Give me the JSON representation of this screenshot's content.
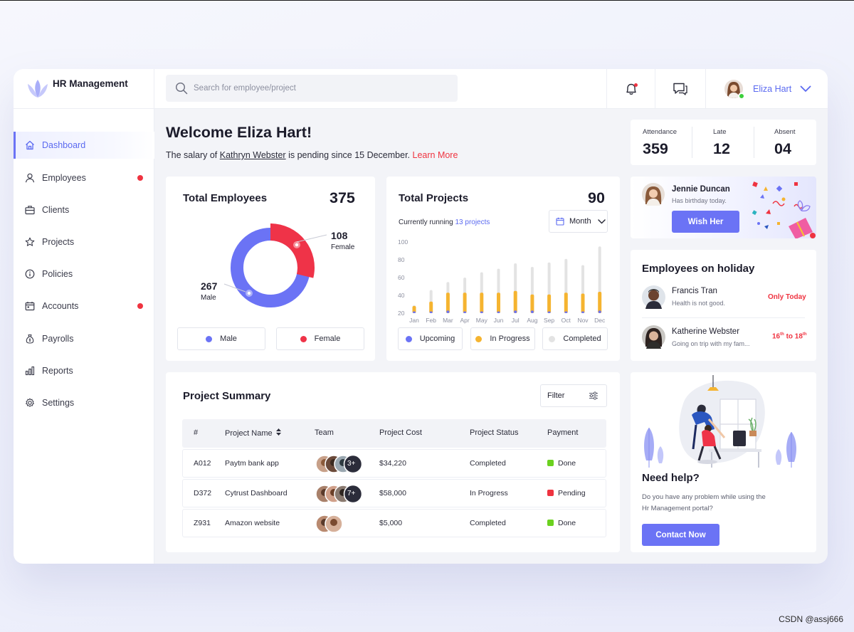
{
  "app": {
    "name": "HR Management"
  },
  "search": {
    "placeholder": "Search for employee/project"
  },
  "user": {
    "name": "Eliza Hart"
  },
  "sidebar": {
    "items": [
      {
        "label": "Dashboard",
        "icon": "home-icon",
        "active": true,
        "alert": false
      },
      {
        "label": "Employees",
        "icon": "user-icon",
        "active": false,
        "alert": true
      },
      {
        "label": "Clients",
        "icon": "briefcase-icon",
        "active": false,
        "alert": false
      },
      {
        "label": "Projects",
        "icon": "star-icon",
        "active": false,
        "alert": false
      },
      {
        "label": "Policies",
        "icon": "info-icon",
        "active": false,
        "alert": false
      },
      {
        "label": "Accounts",
        "icon": "calendar-icon",
        "active": false,
        "alert": true
      },
      {
        "label": "Payrolls",
        "icon": "money-bag-icon",
        "active": false,
        "alert": false
      },
      {
        "label": "Reports",
        "icon": "bar-chart-icon",
        "active": false,
        "alert": false
      },
      {
        "label": "Settings",
        "icon": "gear-icon",
        "active": false,
        "alert": false
      }
    ]
  },
  "welcome": {
    "title": "Welcome Eliza Hart!",
    "salary_prefix": "The salary of ",
    "salary_name": "Kathryn Webster",
    "salary_suffix": " is pending since 15 December. ",
    "learn_more": "Learn More"
  },
  "stats": [
    {
      "label": "Attendance",
      "value": "359"
    },
    {
      "label": "Late",
      "value": "12"
    },
    {
      "label": "Absent",
      "value": "04"
    }
  ],
  "total_employees": {
    "title": "Total Employees",
    "total": "375",
    "male_value": "267",
    "male_label": "Male",
    "female_value": "108",
    "female_label": "Female",
    "legend_male": "Male",
    "legend_female": "Female"
  },
  "total_projects": {
    "title": "Total Projects",
    "total": "90",
    "running_prefix": "Currently running ",
    "running_link": "13 projects",
    "period": "Month",
    "legend": [
      "Upcoming",
      "In Progress",
      "Completed"
    ]
  },
  "colors": {
    "accent": "#6b73f5",
    "female": "#ef3348",
    "male": "#6b73f5",
    "in_progress": "#f5b430",
    "upcoming": "#6b73f5",
    "completed": "#e3e3e3",
    "done": "#6bd11f",
    "pending": "#ef3340",
    "alert": "#ef3340"
  },
  "chart_data": [
    {
      "type": "pie",
      "categories": [
        "Male",
        "Female"
      ],
      "values": [
        267,
        108
      ]
    },
    {
      "type": "bar",
      "categories": [
        "Jan",
        "Feb",
        "Mar",
        "Apr",
        "May",
        "Jun",
        "Jul",
        "Aug",
        "Sep",
        "Oct",
        "Nov",
        "Dec"
      ],
      "ylim": [
        20,
        100
      ],
      "yticks": [
        100,
        80,
        60,
        40,
        20
      ],
      "series": [
        {
          "name": "Upcoming",
          "values": [
            22,
            22,
            23,
            22,
            22,
            22,
            23,
            23,
            22,
            22,
            22,
            23
          ]
        },
        {
          "name": "In Progress",
          "values": [
            28,
            33,
            43,
            43,
            43,
            43,
            45,
            41,
            41,
            43,
            42,
            44
          ]
        },
        {
          "name": "Completed",
          "values": [
            29,
            46,
            55,
            60,
            66,
            70,
            76,
            72,
            77,
            81,
            74,
            95
          ]
        }
      ]
    }
  ],
  "birthday": {
    "name": "Jennie Duncan",
    "subtitle": "Has birthday today.",
    "button": "Wish Her"
  },
  "holiday": {
    "title": "Employees on holiday",
    "people": [
      {
        "name": "Francis Tran",
        "note": "Health is not good.",
        "when": "Only Today"
      },
      {
        "name": "Katherine Webster",
        "note": "Going on trip with my fam...",
        "when_from": "16",
        "when_sup1": "th",
        "when_to": " to 18",
        "when_sup2": "th"
      }
    ]
  },
  "project_summary": {
    "title": "Project Summary",
    "filter": "Filter",
    "columns": [
      "#",
      "Project Name",
      "Team",
      "Project Cost",
      "Project Status",
      "Payment"
    ],
    "rows": [
      {
        "id": "A012",
        "name": "Paytm bank app",
        "team_more": "3+",
        "cost": "$34,220",
        "status": "Completed",
        "payment": "Done"
      },
      {
        "id": "D372",
        "name": "Cytrust Dashboard",
        "team_more": "7+",
        "cost": "$58,000",
        "status": "In Progress",
        "payment": "Pending"
      },
      {
        "id": "Z931",
        "name": "Amazon website",
        "team_more": "",
        "cost": "$5,000",
        "status": "Completed",
        "payment": "Done"
      }
    ]
  },
  "help": {
    "title": "Need help?",
    "text_line1": "Do you have any problem while using the",
    "text_line2": "Hr Management portal?",
    "button": "Contact Now"
  },
  "watermark": "CSDN @assj666"
}
